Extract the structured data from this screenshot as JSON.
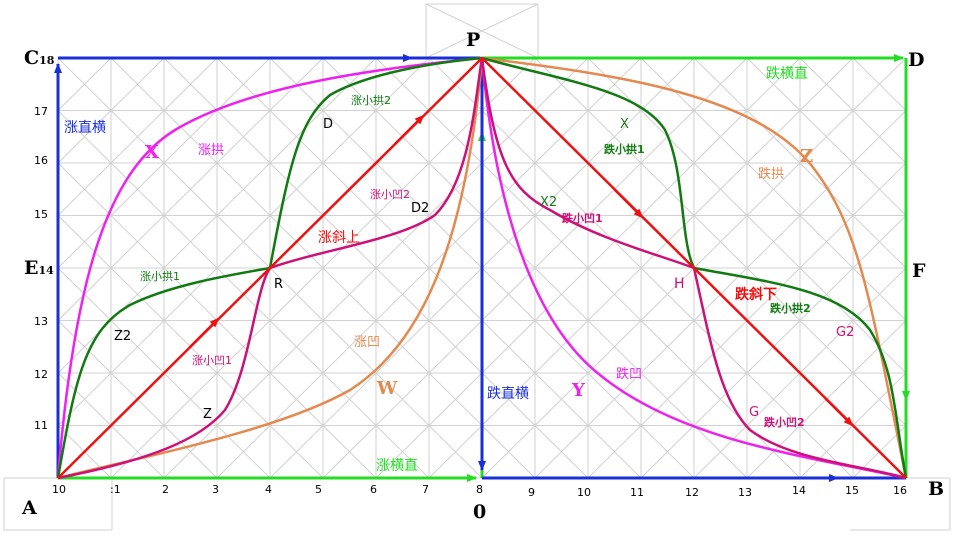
{
  "colors": {
    "blue": "#1a2fd6",
    "green": "#22dd22",
    "darkgreen": "#117a11",
    "red": "#ee1111",
    "magenta": "#ee22ee",
    "crimson": "#cc1177",
    "orange": "#e4894f",
    "grid": "#cfcfcf"
  },
  "corners": {
    "A": "A",
    "B": "B",
    "C": "C",
    "C_sub": "18",
    "D": "D",
    "E": "E",
    "E_sub": "14",
    "F": "F",
    "P": "P",
    "O": "0"
  },
  "y_ticks": [
    "17",
    "16",
    "15",
    "13",
    "12",
    "11"
  ],
  "x_ticks": [
    "10",
    ":1",
    "2",
    "3",
    "4",
    "5",
    "6",
    "7",
    "8",
    "9",
    "10",
    "11",
    "12",
    "13",
    "14",
    "15",
    "16"
  ],
  "points": {
    "R": "R",
    "H": "H",
    "D": "D",
    "D2": "D2",
    "Z": "Z",
    "Z2": "Z2",
    "X": "X",
    "X2": "X2",
    "G": "G",
    "G2": "G2",
    "W": "W",
    "Y": "Y",
    "Xbig": "X",
    "Zbig": "Z"
  },
  "labels": {
    "rise_vert_horiz": "涨直横",
    "rise_horiz_vert": "涨横直",
    "fall_horiz_vert": "跌横直",
    "fall_vert_horiz": "跌直横",
    "rise_diag": "涨斜上",
    "fall_diag": "跌斜下",
    "rise_arch": "涨拱",
    "fall_arch": "跌拱",
    "rise_concave": "涨凹",
    "fall_concave": "跌凹",
    "rise_small_arch1": "涨小拱1",
    "rise_small_arch2": "涨小拱2",
    "rise_small_concave1": "涨小凹1",
    "rise_small_concave2": "涨小凹2",
    "fall_small_arch1": "跌小拱1",
    "fall_small_arch2": "跌小拱2",
    "fall_small_concave1": "跌小凹1",
    "fall_small_concave2": "跌小凹2"
  }
}
